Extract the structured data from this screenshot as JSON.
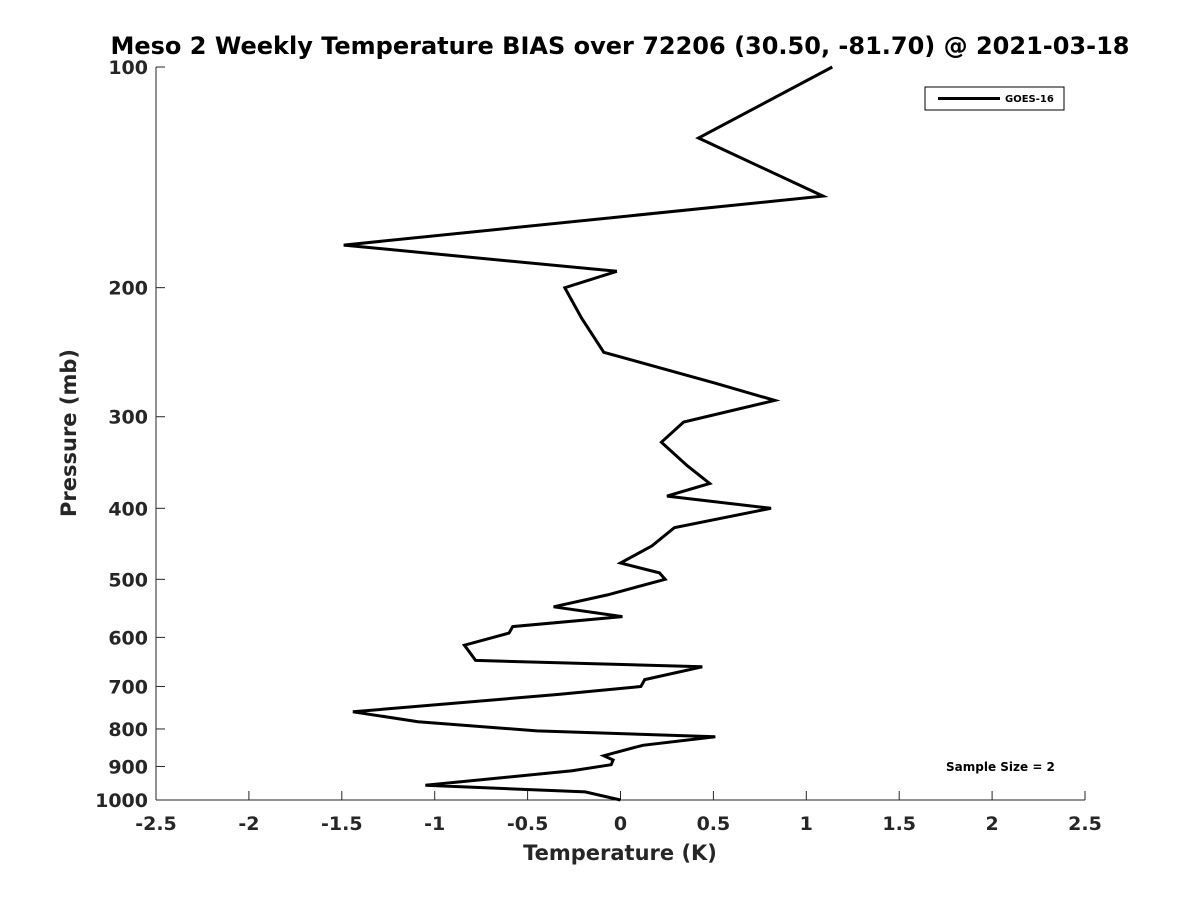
{
  "chart_data": {
    "type": "line",
    "title": "Meso 2 Weekly Temperature BIAS over 72206 (30.50, -81.70) @ 2021-03-18",
    "xlabel": "Temperature (K)",
    "ylabel": "Pressure (mb)",
    "xlim": [
      -2.5,
      2.5
    ],
    "ylim": [
      100,
      1000
    ],
    "y_scale": "log",
    "y_reversed": true,
    "x_ticks": [
      "-2.5",
      "-2",
      "-1.5",
      "-1",
      "-0.5",
      "0",
      "0.5",
      "1",
      "1.5",
      "2",
      "2.5"
    ],
    "x_tick_values": [
      -2.5,
      -2,
      -1.5,
      -1,
      -0.5,
      0,
      0.5,
      1,
      1.5,
      2,
      2.5
    ],
    "y_ticks": [
      "100",
      "200",
      "300",
      "400",
      "500",
      "600",
      "700",
      "800",
      "900",
      "1000"
    ],
    "y_tick_values": [
      100,
      200,
      300,
      400,
      500,
      600,
      700,
      800,
      900,
      1000
    ],
    "grid": false,
    "legend_position": "top-right",
    "annotation": "Sample Size = 2",
    "series": [
      {
        "name": "GOES-16",
        "color": "#000000",
        "points": [
          [
            1.14,
            100
          ],
          [
            0.42,
            125
          ],
          [
            1.09,
            150
          ],
          [
            -1.49,
            175
          ],
          [
            -0.02,
            190
          ],
          [
            -0.3,
            200
          ],
          [
            -0.21,
            220
          ],
          [
            -0.09,
            245
          ],
          [
            0.51,
            270
          ],
          [
            0.83,
            285
          ],
          [
            0.34,
            305
          ],
          [
            0.22,
            325
          ],
          [
            0.36,
            350
          ],
          [
            0.48,
            370
          ],
          [
            0.25,
            385
          ],
          [
            0.81,
            400
          ],
          [
            0.29,
            425
          ],
          [
            0.17,
            450
          ],
          [
            0.0,
            475
          ],
          [
            0.21,
            490
          ],
          [
            0.24,
            500
          ],
          [
            -0.07,
            525
          ],
          [
            -0.36,
            545
          ],
          [
            0.01,
            562
          ],
          [
            -0.58,
            580
          ],
          [
            -0.6,
            592
          ],
          [
            -0.84,
            615
          ],
          [
            -0.78,
            645
          ],
          [
            0.44,
            658
          ],
          [
            0.13,
            685
          ],
          [
            0.11,
            700
          ],
          [
            -0.34,
            718
          ],
          [
            -1.44,
            758
          ],
          [
            -1.09,
            782
          ],
          [
            -0.45,
            805
          ],
          [
            0.51,
            820
          ],
          [
            0.12,
            842
          ],
          [
            -0.09,
            870
          ],
          [
            -0.04,
            882
          ],
          [
            -0.05,
            895
          ],
          [
            -0.26,
            912
          ],
          [
            -1.05,
            955
          ],
          [
            -0.19,
            975
          ],
          [
            0.0,
            1000
          ]
        ]
      }
    ]
  }
}
